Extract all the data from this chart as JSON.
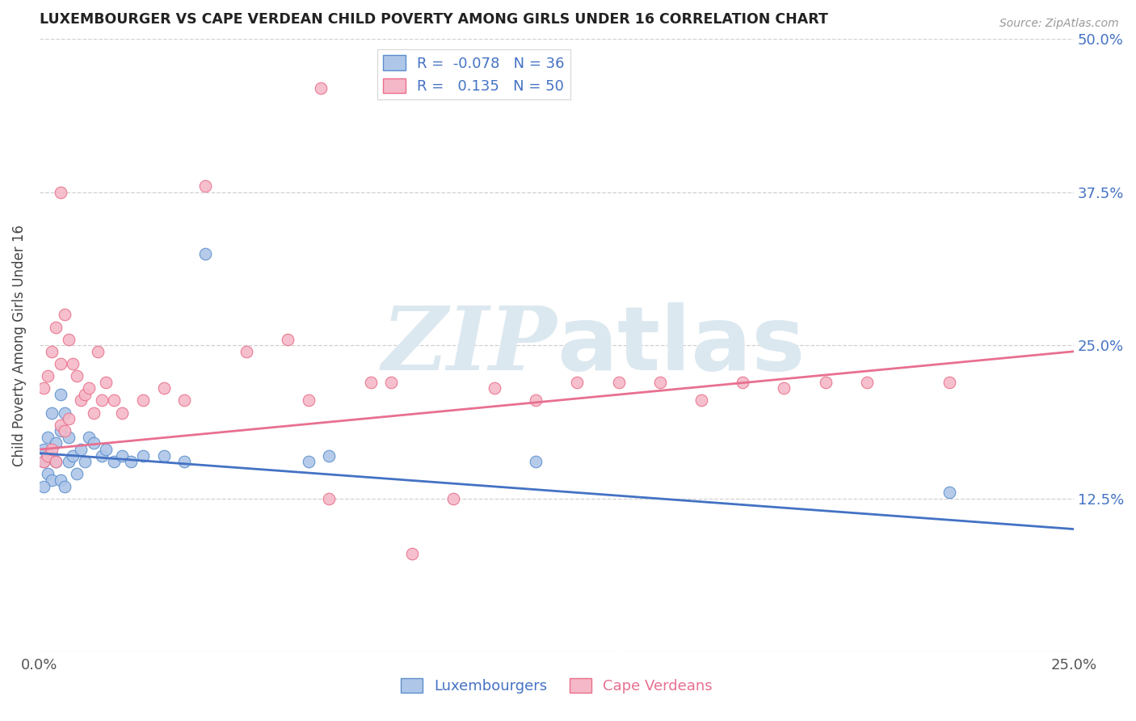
{
  "title": "LUXEMBOURGER VS CAPE VERDEAN CHILD POVERTY AMONG GIRLS UNDER 16 CORRELATION CHART",
  "source": "Source: ZipAtlas.com",
  "ylabel": "Child Poverty Among Girls Under 16",
  "xlabel_lux": "Luxembourgers",
  "xlabel_cape": "Cape Verdeans",
  "xlim": [
    0.0,
    0.25
  ],
  "ylim": [
    0.0,
    0.5
  ],
  "lux_R": -0.078,
  "lux_N": 36,
  "cape_R": 0.135,
  "cape_N": 50,
  "lux_color": "#aec6e8",
  "cape_color": "#f5b8c8",
  "lux_edge_color": "#5b8fcc",
  "cape_edge_color": "#e8708a",
  "lux_line_color": "#4472c4",
  "cape_line_color": "#e87090",
  "watermark_zip": "ZIP",
  "watermark_atlas": "atlas",
  "watermark_color": "#dce8f0",
  "lux_x": [
    0.001,
    0.001,
    0.002,
    0.002,
    0.003,
    0.003,
    0.003,
    0.004,
    0.004,
    0.005,
    0.005,
    0.005,
    0.006,
    0.006,
    0.007,
    0.007,
    0.008,
    0.009,
    0.01,
    0.011,
    0.012,
    0.013,
    0.015,
    0.016,
    0.018,
    0.02,
    0.022,
    0.025,
    0.03,
    0.035,
    0.04,
    0.065,
    0.07,
    0.12,
    0.22,
    0.001
  ],
  "lux_y": [
    0.155,
    0.165,
    0.145,
    0.175,
    0.14,
    0.16,
    0.195,
    0.155,
    0.17,
    0.14,
    0.18,
    0.21,
    0.135,
    0.195,
    0.155,
    0.175,
    0.16,
    0.145,
    0.165,
    0.155,
    0.175,
    0.17,
    0.16,
    0.165,
    0.155,
    0.16,
    0.155,
    0.16,
    0.16,
    0.155,
    0.325,
    0.155,
    0.16,
    0.155,
    0.13,
    0.135
  ],
  "cape_x": [
    0.001,
    0.001,
    0.002,
    0.002,
    0.003,
    0.003,
    0.004,
    0.004,
    0.005,
    0.005,
    0.005,
    0.006,
    0.006,
    0.007,
    0.007,
    0.008,
    0.009,
    0.01,
    0.011,
    0.012,
    0.013,
    0.014,
    0.015,
    0.016,
    0.018,
    0.02,
    0.025,
    0.03,
    0.035,
    0.04,
    0.05,
    0.06,
    0.065,
    0.07,
    0.08,
    0.085,
    0.09,
    0.1,
    0.11,
    0.12,
    0.13,
    0.14,
    0.15,
    0.16,
    0.17,
    0.18,
    0.19,
    0.2,
    0.22,
    0.068
  ],
  "cape_y": [
    0.155,
    0.215,
    0.16,
    0.225,
    0.165,
    0.245,
    0.155,
    0.265,
    0.185,
    0.235,
    0.375,
    0.18,
    0.275,
    0.19,
    0.255,
    0.235,
    0.225,
    0.205,
    0.21,
    0.215,
    0.195,
    0.245,
    0.205,
    0.22,
    0.205,
    0.195,
    0.205,
    0.215,
    0.205,
    0.38,
    0.245,
    0.255,
    0.205,
    0.125,
    0.22,
    0.22,
    0.08,
    0.125,
    0.215,
    0.205,
    0.22,
    0.22,
    0.22,
    0.205,
    0.22,
    0.215,
    0.22,
    0.22,
    0.22,
    0.46
  ]
}
